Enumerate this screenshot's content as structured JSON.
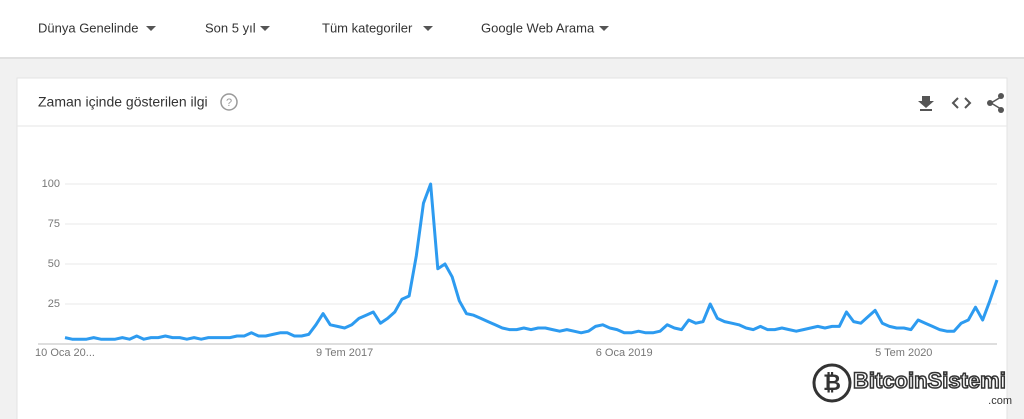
{
  "filters": [
    "Dünya Genelinde",
    "Son 5 yıl",
    "Tüm kategoriler",
    "Google Web Arama"
  ],
  "card_title": "Zaman içinde gösterilen ilgi",
  "watermark": {
    "brand": "BitcoinSistemi",
    "suffix": ".com"
  },
  "chart_data": {
    "type": "line",
    "categories": [
      "10 Oca 20...",
      null,
      null,
      null,
      null,
      null,
      null,
      null,
      null,
      null,
      null,
      null,
      null,
      null,
      null,
      null,
      null,
      null,
      null,
      null,
      null,
      null,
      null,
      null,
      null,
      null,
      null,
      null,
      null,
      null,
      null,
      null,
      null,
      null,
      null,
      null,
      null,
      null,
      null,
      "9 Tem 2017",
      null,
      null,
      null,
      null,
      null,
      null,
      null,
      null,
      null,
      null,
      null,
      null,
      null,
      null,
      null,
      null,
      null,
      null,
      null,
      null,
      null,
      null,
      null,
      null,
      null,
      null,
      null,
      null,
      null,
      null,
      null,
      null,
      null,
      null,
      null,
      null,
      null,
      null,
      "6 Oca 2019",
      null,
      null,
      null,
      null,
      null,
      null,
      null,
      null,
      null,
      null,
      null,
      null,
      null,
      null,
      null,
      null,
      null,
      null,
      null,
      null,
      null,
      null,
      null,
      null,
      null,
      null,
      null,
      null,
      null,
      null,
      null,
      null,
      null,
      null,
      null,
      null,
      null,
      null,
      "5 Tem 2020",
      null,
      null,
      null,
      null,
      null,
      null,
      null,
      null,
      null,
      null,
      null,
      null,
      null
    ],
    "series": [
      {
        "color": "#2d9bf0",
        "values": [
          4,
          3,
          3,
          3,
          4,
          3,
          3,
          3,
          4,
          3,
          5,
          3,
          4,
          4,
          5,
          4,
          4,
          3,
          4,
          3,
          4,
          4,
          4,
          4,
          5,
          5,
          7,
          5,
          5,
          6,
          7,
          7,
          5,
          5,
          6,
          12,
          19,
          12,
          11,
          10,
          12,
          16,
          18,
          20,
          13,
          16,
          20,
          28,
          30,
          55,
          88,
          100,
          47,
          50,
          42,
          27,
          19,
          18,
          16,
          14,
          12,
          10,
          9,
          9,
          10,
          9,
          10,
          10,
          9,
          8,
          9,
          8,
          7,
          8,
          11,
          12,
          10,
          9,
          7,
          7,
          8,
          7,
          7,
          8,
          12,
          10,
          9,
          15,
          13,
          14,
          25,
          16,
          14,
          13,
          12,
          10,
          9,
          11,
          9,
          9,
          10,
          9,
          8,
          9,
          10,
          11,
          10,
          11,
          11,
          20,
          14,
          13,
          17,
          21,
          13,
          11,
          10,
          10,
          9,
          15,
          13,
          11,
          9,
          8,
          8,
          13,
          15,
          23,
          15,
          27,
          40
        ]
      }
    ],
    "ylim": [
      0,
      100
    ],
    "yticks": [
      25,
      50,
      75,
      100
    ],
    "grid": true
  }
}
